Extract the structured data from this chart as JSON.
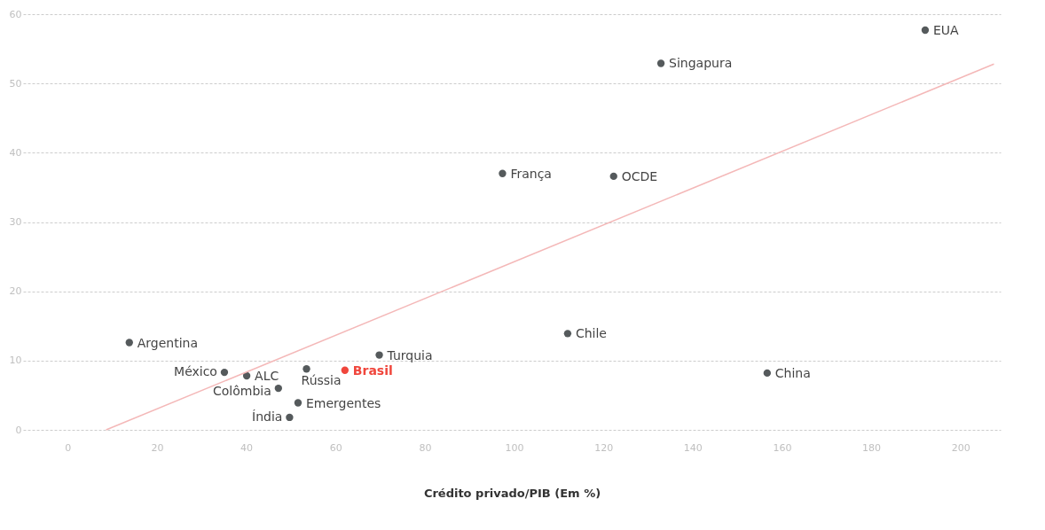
{
  "chart_data": {
    "type": "scatter",
    "xlabel": "Crédito privado/PIB (Em %)",
    "xlim": [
      -10,
      209
    ],
    "ylim": [
      0,
      60
    ],
    "xticks": [
      0,
      20,
      40,
      60,
      80,
      100,
      120,
      140,
      160,
      180,
      200
    ],
    "yticks": [
      0,
      10,
      20,
      30,
      40,
      50,
      60
    ],
    "grid": "y",
    "marker": "circle",
    "series": [
      {
        "name": "EUA",
        "color": "#555a5c",
        "x": [
          192.1
        ],
        "values": [
          57.7
        ]
      },
      {
        "name": "Singapura",
        "color": "#555a5c",
        "x": [
          132.9
        ],
        "values": [
          52.9
        ]
      },
      {
        "name": "França",
        "color": "#555a5c",
        "x": [
          97.4
        ],
        "values": [
          37.0
        ]
      },
      {
        "name": "OCDE",
        "color": "#555a5c",
        "x": [
          122.3
        ],
        "values": [
          36.6
        ]
      },
      {
        "name": "Chile",
        "color": "#555a5c",
        "x": [
          112.0
        ],
        "values": [
          13.9
        ]
      },
      {
        "name": "China",
        "color": "#555a5c",
        "x": [
          156.7
        ],
        "values": [
          8.2
        ]
      },
      {
        "name": "Argentina",
        "color": "#555a5c",
        "x": [
          13.8
        ],
        "values": [
          12.6
        ]
      },
      {
        "name": "Turquia",
        "color": "#555a5c",
        "x": [
          69.8
        ],
        "values": [
          10.8
        ]
      },
      {
        "name": "México",
        "color": "#555a5c",
        "x": [
          35.1
        ],
        "values": [
          8.3
        ]
      },
      {
        "name": "ALC",
        "color": "#555a5c",
        "x": [
          40.1
        ],
        "values": [
          7.8
        ]
      },
      {
        "name": "Rússia",
        "color": "#555a5c",
        "x": [
          53.5
        ],
        "values": [
          8.8
        ]
      },
      {
        "name": "Brasil",
        "color": "#f0463c",
        "x": [
          62.1
        ],
        "values": [
          8.6
        ]
      },
      {
        "name": "Colômbia",
        "color": "#555a5c",
        "x": [
          47.2
        ],
        "values": [
          6.0
        ]
      },
      {
        "name": "Emergentes",
        "color": "#555a5c",
        "x": [
          51.6
        ],
        "values": [
          3.9
        ]
      },
      {
        "name": "Índia",
        "color": "#555a5c",
        "x": [
          49.7
        ],
        "values": [
          1.8
        ]
      },
      {
        "type": "line",
        "marker": "none",
        "color": "#f4b8b8",
        "x": [
          8.6,
          207.5
        ],
        "values": [
          0,
          52.8
        ]
      }
    ]
  }
}
